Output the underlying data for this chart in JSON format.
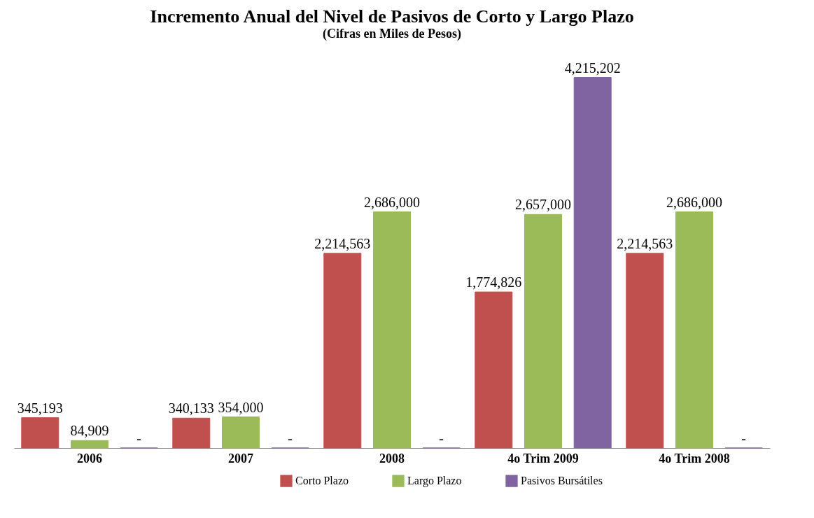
{
  "chart_data": {
    "type": "bar",
    "title": "Incremento Anual del Nivel de Pasivos de Corto y Largo Plazo",
    "subtitle": "(Cifras en Miles de Pesos)",
    "categories": [
      "2006",
      "2007",
      "2008",
      "4o Trim 2009",
      "4o Trim 2008"
    ],
    "series": [
      {
        "name": "Corto Plazo",
        "color": "#c0504d",
        "values": [
          345193,
          340133,
          2214563,
          1774826,
          2214563
        ],
        "value_labels": [
          "345,193",
          "340,133",
          "2,214,563",
          "1,774,826",
          "2,214,563"
        ]
      },
      {
        "name": "Largo Plazo",
        "color": "#9bbb59",
        "values": [
          84909,
          354000,
          2686000,
          2657000,
          2686000
        ],
        "value_labels": [
          "84,909",
          "354,000",
          "2,686,000",
          "2,657,000",
          "2,686,000"
        ]
      },
      {
        "name": "Pasivos Bursátiles",
        "color": "#8064a2",
        "values": [
          0,
          0,
          0,
          4215202,
          0
        ],
        "value_labels": [
          "-",
          "-",
          "-",
          "4,215,202",
          "-"
        ]
      }
    ],
    "legend": "bottom",
    "grid": false
  }
}
